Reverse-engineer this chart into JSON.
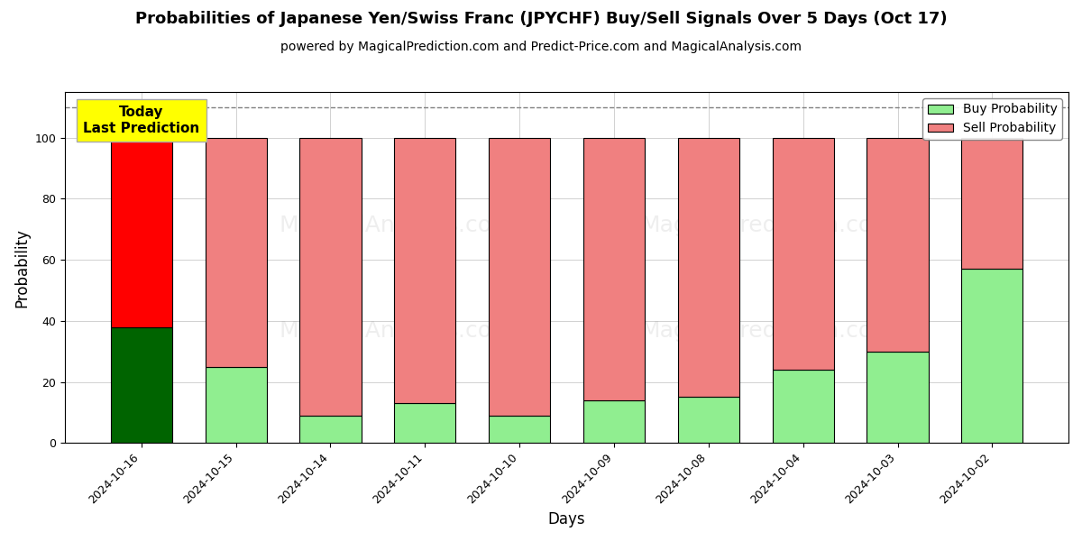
{
  "title": "Probabilities of Japanese Yen/Swiss Franc (JPYCHF) Buy/Sell Signals Over 5 Days (Oct 17)",
  "subtitle": "powered by MagicalPrediction.com and Predict-Price.com and MagicalAnalysis.com",
  "xlabel": "Days",
  "ylabel": "Probability",
  "days": [
    "2024-10-16",
    "2024-10-15",
    "2024-10-14",
    "2024-10-11",
    "2024-10-10",
    "2024-10-09",
    "2024-10-08",
    "2024-10-04",
    "2024-10-03",
    "2024-10-02"
  ],
  "buy_probs": [
    38,
    25,
    9,
    13,
    9,
    14,
    15,
    24,
    30,
    57
  ],
  "sell_probs": [
    62,
    75,
    91,
    87,
    91,
    86,
    85,
    76,
    70,
    43
  ],
  "buy_color_special": "#006400",
  "buy_color_normal": "#90EE90",
  "sell_color_special": "#FF0000",
  "sell_color_normal": "#F08080",
  "today_box_color": "#FFFF00",
  "today_label": "Today\nLast Prediction",
  "dashed_line_y": 110,
  "ylim_max": 115,
  "yticks": [
    0,
    20,
    40,
    60,
    80,
    100
  ],
  "legend_buy_color": "#90EE90",
  "legend_sell_color": "#F08080",
  "figsize": [
    12,
    6
  ],
  "dpi": 100,
  "bar_width": 0.65,
  "title_fontsize": 13,
  "subtitle_fontsize": 10,
  "axis_label_fontsize": 12,
  "tick_fontsize": 9,
  "legend_fontsize": 10,
  "today_fontsize": 11,
  "watermark_alpha": 0.13
}
